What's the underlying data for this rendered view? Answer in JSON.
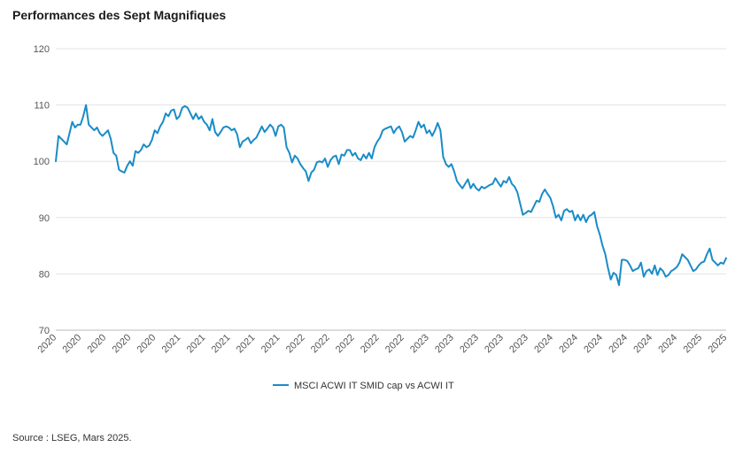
{
  "chart_data": {
    "type": "line",
    "title": "Performances des Sept Magnifiques",
    "xlabel": "",
    "ylabel": "",
    "ylim": [
      70,
      120
    ],
    "yticks": [
      70,
      80,
      90,
      100,
      110,
      120
    ],
    "x_tick_labels": [
      "2020",
      "2020",
      "2020",
      "2020",
      "2020",
      "2021",
      "2021",
      "2021",
      "2021",
      "2021",
      "2022",
      "2022",
      "2022",
      "2022",
      "2022",
      "2023",
      "2023",
      "2023",
      "2023",
      "2023",
      "2024",
      "2024",
      "2024",
      "2024",
      "2024",
      "2024",
      "2025",
      "2025"
    ],
    "grid": true,
    "legend_position": "bottom",
    "series": [
      {
        "name": "MSCI ACWI IT SMID cap vs ACWI IT",
        "color": "#1a8cc7",
        "values": [
          100,
          104.5,
          104,
          103.5,
          103,
          105,
          107,
          106,
          106.5,
          106.5,
          108,
          110,
          106.5,
          106,
          105.5,
          106,
          105,
          104.5,
          105,
          105.5,
          104,
          101.5,
          101,
          98.5,
          98.2,
          98,
          99.2,
          100,
          99.2,
          101.8,
          101.5,
          102,
          103,
          102.5,
          102.8,
          103.8,
          105.5,
          105,
          106.2,
          107,
          108.5,
          108,
          109,
          109.2,
          107.5,
          108,
          109.5,
          109.8,
          109.5,
          108.5,
          107.5,
          108.5,
          107.5,
          108,
          107,
          106.5,
          105.5,
          107.5,
          105.2,
          104.5,
          105.2,
          106,
          106.2,
          106,
          105.5,
          105.8,
          104.8,
          102.5,
          103.5,
          103.8,
          104.2,
          103.2,
          103.8,
          104.2,
          105.2,
          106.2,
          105.2,
          105.8,
          106.5,
          106,
          104.5,
          106.2,
          106.5,
          106,
          102.5,
          101.5,
          99.8,
          101,
          100.5,
          99.5,
          98.8,
          98.2,
          96.5,
          98,
          98.5,
          99.8,
          100,
          99.8,
          100.5,
          99,
          100.2,
          100.8,
          101,
          99.5,
          101.2,
          101,
          102,
          102,
          101,
          101.5,
          100.5,
          100.2,
          101.2,
          100.5,
          101.5,
          100.5,
          102.5,
          103.5,
          104.2,
          105.5,
          105.8,
          106,
          106.2,
          105,
          105.8,
          106.2,
          105.2,
          103.5,
          104,
          104.5,
          104.2,
          105.5,
          107,
          106,
          106.5,
          105,
          105.5,
          104.5,
          105.5,
          106.8,
          105.5,
          100.8,
          99.5,
          99,
          99.5,
          98.2,
          96.5,
          95.8,
          95.2,
          96,
          96.8,
          95.2,
          96,
          95.2,
          94.8,
          95.5,
          95.2,
          95.5,
          95.8,
          96,
          97,
          96.2,
          95.5,
          96.5,
          96.2,
          97.2,
          96,
          95.5,
          94.5,
          92.5,
          90.5,
          90.8,
          91.2,
          91,
          92,
          93,
          92.8,
          94.2,
          95,
          94.2,
          93.5,
          92,
          90,
          90.5,
          89.5,
          91.2,
          91.5,
          91,
          91.2,
          89.5,
          90.5,
          89.5,
          90.5,
          89.2,
          90.2,
          90.5,
          91,
          88.5,
          87,
          85,
          83.5,
          81,
          79,
          80.2,
          79.8,
          78,
          82.5,
          82.5,
          82.3,
          81.5,
          80.5,
          80.8,
          81,
          82,
          79.5,
          80.5,
          80.8,
          80,
          81.5,
          79.8,
          81,
          80.5,
          79.5,
          79.8,
          80.5,
          80.8,
          81.2,
          82,
          83.5,
          83,
          82.5,
          81.5,
          80.5,
          80.8,
          81.5,
          82,
          82.2,
          83.5,
          84.5,
          82.5,
          82,
          81.5,
          82,
          81.8,
          82.8
        ]
      }
    ]
  },
  "source": "Source : LSEG, Mars 2025."
}
